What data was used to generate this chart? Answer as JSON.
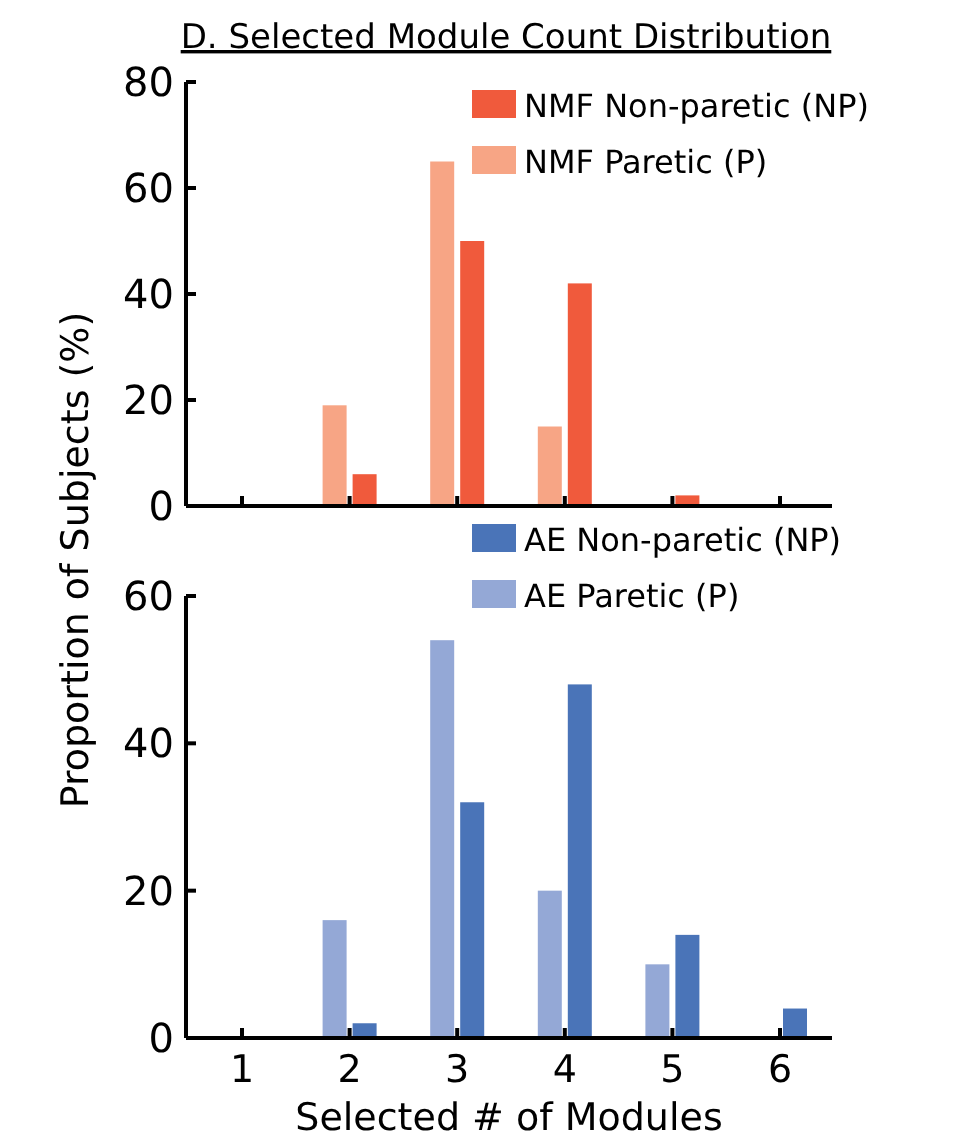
{
  "chart_data": [
    {
      "type": "bar",
      "title": "D. Selected Module Count Distribution",
      "categories": [
        "1",
        "2",
        "3",
        "4",
        "5",
        "6"
      ],
      "series": [
        {
          "name": "NMF Non-paretic (NP)",
          "color": "#f05a3c",
          "values": [
            0,
            6,
            50,
            42,
            2,
            0
          ]
        },
        {
          "name": "NMF Paretic (P)",
          "color": "#f7a585",
          "values": [
            0,
            19,
            65,
            15,
            0,
            0
          ]
        }
      ],
      "ylim": [
        0,
        80
      ],
      "yticks": [
        0,
        20,
        40,
        60,
        80
      ],
      "tick_labels": "y",
      "legend": "top right",
      "grid": false
    },
    {
      "type": "bar",
      "categories": [
        "1",
        "2",
        "3",
        "4",
        "5",
        "6"
      ],
      "xlabel": "Selected # of Modules",
      "ylabel": "Proportion of Subjects (%)",
      "series": [
        {
          "name": "AE Non-paretic (NP)",
          "color": "#4a74b8",
          "values": [
            0,
            2,
            32,
            48,
            14,
            4
          ]
        },
        {
          "name": "AE Paretic (P)",
          "color": "#94a8d6",
          "values": [
            0,
            16,
            54,
            20,
            10,
            0
          ]
        }
      ],
      "ylim": [
        0,
        60
      ],
      "yticks": [
        0,
        20,
        40,
        60
      ],
      "legend": "top right",
      "grid": false
    }
  ]
}
